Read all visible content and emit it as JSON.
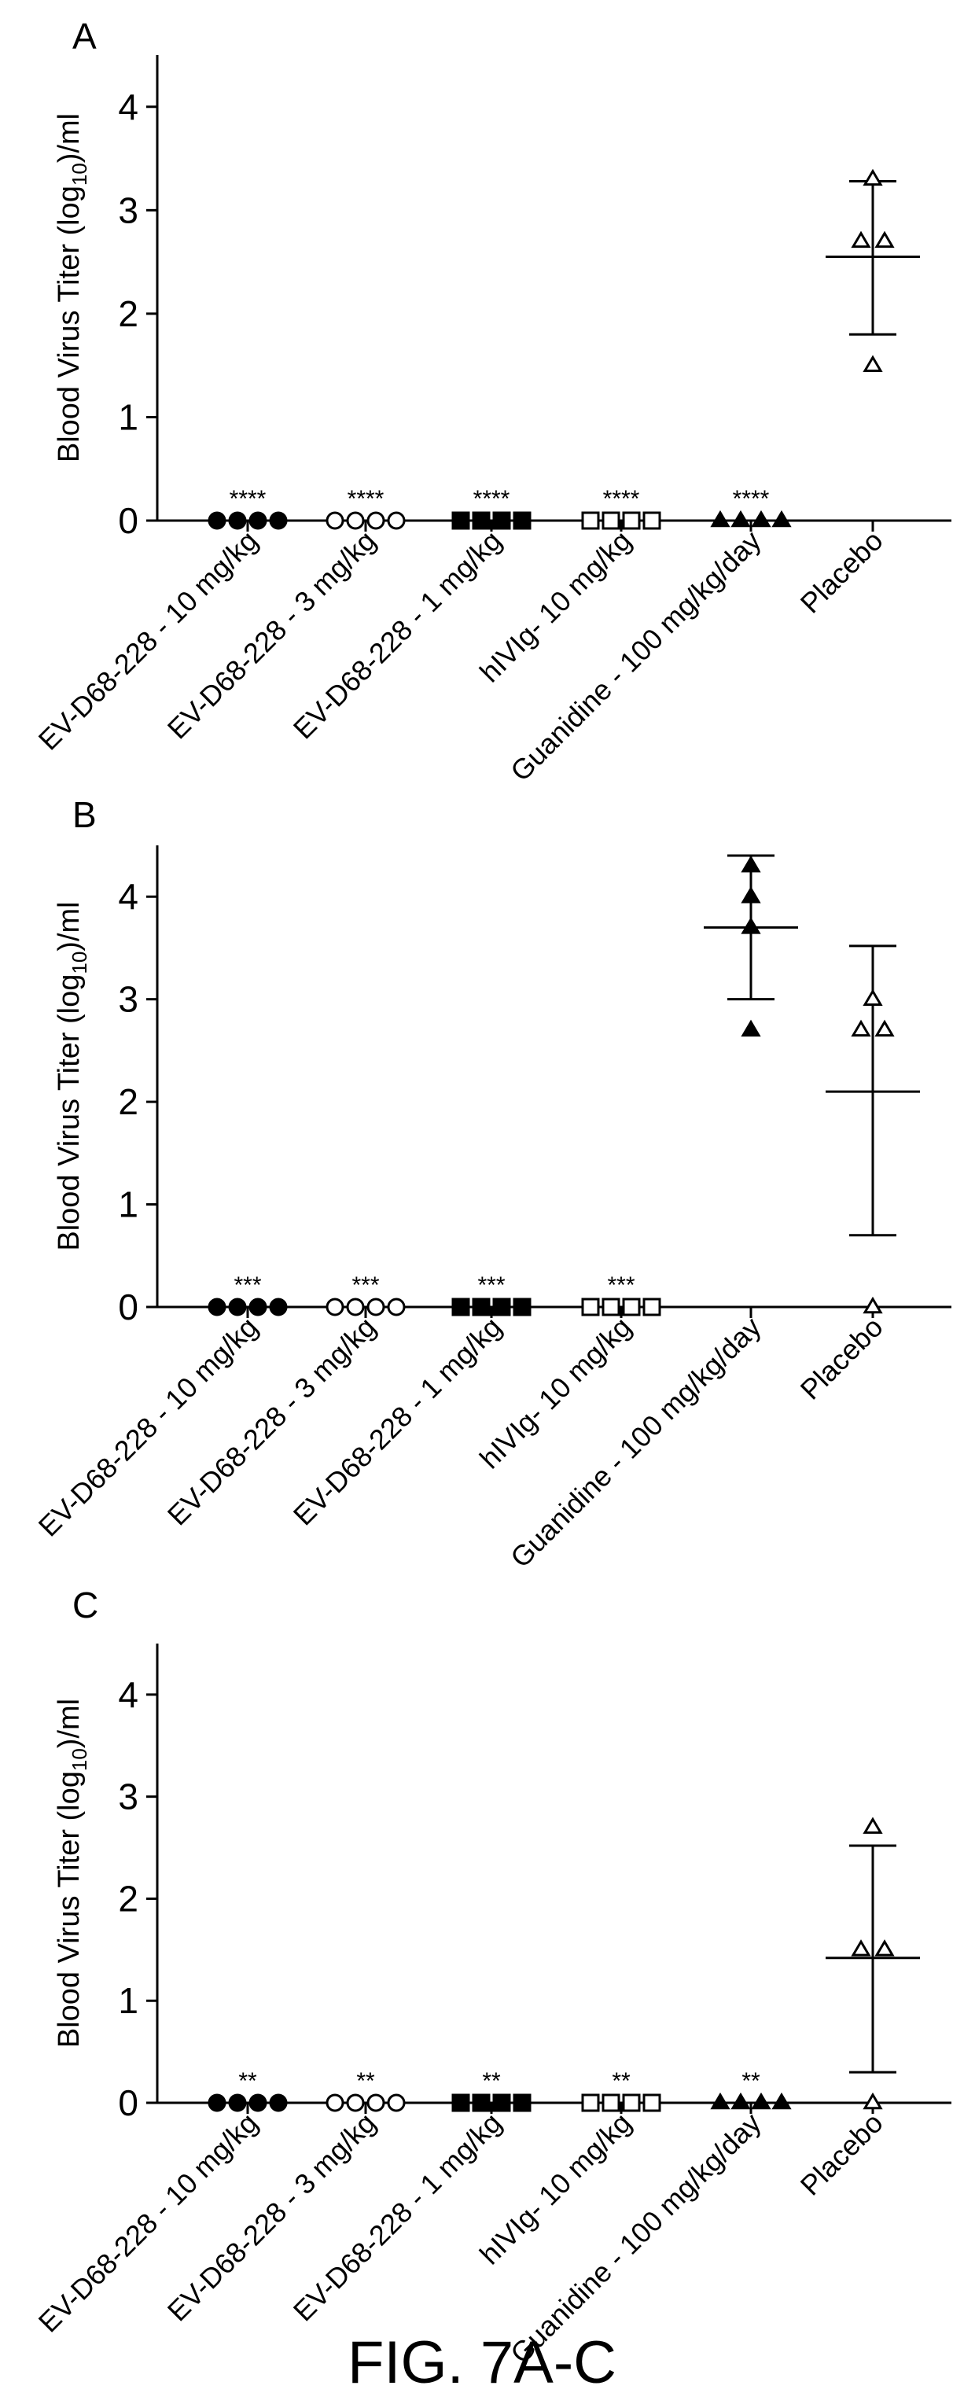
{
  "figure_caption": "FIG. 7A-C",
  "colors": {
    "ink": "#000000",
    "background": "#ffffff"
  },
  "chart_data": [
    {
      "type": "scatter",
      "panel": "A",
      "ylabel_parts": [
        "Blood Virus Titer (log",
        "10",
        ")/ml"
      ],
      "ylim": [
        0,
        4.5
      ],
      "yticks": [
        0,
        1,
        2,
        3,
        4
      ],
      "categories": [
        "EV-D68-228 - 10 mg/kg",
        "EV-D68-228 - 3 mg/kg",
        "EV-D68-228 - 1 mg/kg",
        "hIVIg- 10 mg/kg",
        "Guanidine - 100 mg/kg/day",
        "Placebo"
      ],
      "groups": [
        {
          "marker": "circle-filled",
          "values": [
            0,
            0,
            0,
            0
          ],
          "significance": "****"
        },
        {
          "marker": "circle-open",
          "values": [
            0,
            0,
            0,
            0
          ],
          "significance": "****"
        },
        {
          "marker": "square-filled",
          "values": [
            0,
            0,
            0,
            0
          ],
          "significance": "****"
        },
        {
          "marker": "square-open",
          "values": [
            0,
            0,
            0,
            0
          ],
          "significance": "****"
        },
        {
          "marker": "triangle-filled",
          "values": [
            0,
            0,
            0,
            0
          ],
          "significance": "****"
        },
        {
          "marker": "triangle-open",
          "values": [
            3.3,
            2.7,
            2.7,
            1.5
          ],
          "mean": 2.55,
          "sd": [
            1.8,
            3.28
          ],
          "significance": ""
        }
      ]
    },
    {
      "type": "scatter",
      "panel": "B",
      "ylabel_parts": [
        "Blood Virus Titer (log",
        "10",
        ")/ml"
      ],
      "ylim": [
        0,
        4.5
      ],
      "yticks": [
        0,
        1,
        2,
        3,
        4
      ],
      "categories": [
        "EV-D68-228 - 10 mg/kg",
        "EV-D68-228 - 3 mg/kg",
        "EV-D68-228 - 1 mg/kg",
        "hIVIg- 10 mg/kg",
        "Guanidine - 100 mg/kg/day",
        "Placebo"
      ],
      "groups": [
        {
          "marker": "circle-filled",
          "values": [
            0,
            0,
            0,
            0
          ],
          "significance": "***"
        },
        {
          "marker": "circle-open",
          "values": [
            0,
            0,
            0,
            0
          ],
          "significance": "***"
        },
        {
          "marker": "square-filled",
          "values": [
            0,
            0,
            0,
            0
          ],
          "significance": "***"
        },
        {
          "marker": "square-open",
          "values": [
            0,
            0,
            0,
            0
          ],
          "significance": "***"
        },
        {
          "marker": "triangle-filled",
          "values": [
            4.3,
            4.0,
            3.7,
            2.7
          ],
          "mean": 3.7,
          "sd": [
            3.0,
            4.4
          ],
          "significance": ""
        },
        {
          "marker": "triangle-open",
          "values": [
            3.0,
            2.7,
            2.7,
            0
          ],
          "mean": 2.1,
          "sd": [
            0.7,
            3.52
          ],
          "significance": ""
        }
      ]
    },
    {
      "type": "scatter",
      "panel": "C",
      "ylabel_parts": [
        "Blood Virus Titer (log",
        "10",
        ")/ml"
      ],
      "ylim": [
        0,
        4.5
      ],
      "yticks": [
        0,
        1,
        2,
        3,
        4
      ],
      "categories": [
        "EV-D68-228 - 10 mg/kg",
        "EV-D68-228 - 3 mg/kg",
        "EV-D68-228 - 1 mg/kg",
        "hIVIg- 10 mg/kg",
        "Guanidine - 100 mg/kg/day",
        "Placebo"
      ],
      "groups": [
        {
          "marker": "circle-filled",
          "values": [
            0,
            0,
            0,
            0
          ],
          "significance": "**"
        },
        {
          "marker": "circle-open",
          "values": [
            0,
            0,
            0,
            0
          ],
          "significance": "**"
        },
        {
          "marker": "square-filled",
          "values": [
            0,
            0,
            0,
            0
          ],
          "significance": "**"
        },
        {
          "marker": "square-open",
          "values": [
            0,
            0,
            0,
            0
          ],
          "significance": "**"
        },
        {
          "marker": "triangle-filled",
          "values": [
            0,
            0,
            0,
            0
          ],
          "significance": "**"
        },
        {
          "marker": "triangle-open",
          "values": [
            2.7,
            1.5,
            1.5,
            0
          ],
          "mean": 1.42,
          "sd": [
            0.3,
            2.52
          ],
          "significance": ""
        }
      ]
    }
  ]
}
